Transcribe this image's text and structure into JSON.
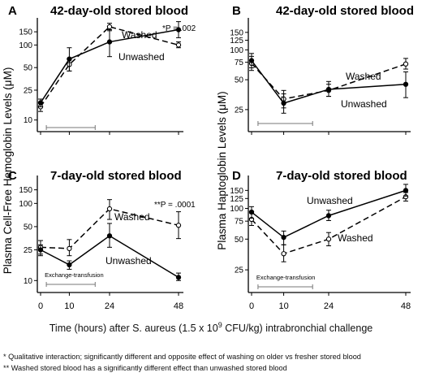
{
  "figure": {
    "ylabel_left": "Plasma Cell-Free Hemoglobin Levels (μM)",
    "ylabel_right": "Plasma Haptoglobin Levels (μM)",
    "xlabel_pre": "Time (hours) after S. aureus (1.5 x 10",
    "xlabel_exp": "9",
    "xlabel_post": " CFU/kg) intrabronchial challenge",
    "footnote1": "*   Qualitative interaction; significantly different and opposite effect of washing on older vs fresher stored blood",
    "footnote2": "**  Washed stored blood has a significantly different effect than unwashed stored blood"
  },
  "chart_data": [
    {
      "id": "A",
      "type": "line",
      "title": "42-day-old stored blood",
      "ylabel": "Plasma Cell-Free Hemoglobin Levels (μM)",
      "yscale": "log",
      "ylim": [
        7,
        230
      ],
      "yticks": [
        10,
        25,
        50,
        100,
        150
      ],
      "xticks": [
        0,
        10,
        24,
        48
      ],
      "x": [
        0,
        10,
        24,
        48
      ],
      "annotation": "*P = .002",
      "bar": {
        "x": [
          2,
          19
        ],
        "label": ""
      },
      "series": [
        {
          "name": "Washed",
          "style": "dashed",
          "marker": "open",
          "values": [
            15,
            55,
            175,
            100
          ],
          "err_lo": [
            13,
            45,
            155,
            92
          ],
          "err_hi": [
            17,
            66,
            195,
            110
          ]
        },
        {
          "name": "Unwashed",
          "style": "solid",
          "marker": "filled",
          "values": [
            17,
            65,
            110,
            160
          ],
          "err_lo": [
            15,
            45,
            70,
            125
          ],
          "err_hi": [
            19,
            92,
            160,
            205
          ]
        }
      ]
    },
    {
      "id": "B",
      "type": "line",
      "title": "42-day-old stored blood",
      "ylabel": "Plasma Haptoglobin Levels (μM)",
      "yscale": "log",
      "ylim": [
        15,
        210
      ],
      "yticks": [
        25,
        50,
        75,
        100,
        125,
        150
      ],
      "xticks": [
        0,
        10,
        24,
        48
      ],
      "x": [
        0,
        10,
        24,
        48
      ],
      "annotation": "",
      "bar": {
        "x": [
          2,
          19
        ],
        "label": ""
      },
      "series": [
        {
          "name": "Washed",
          "style": "dashed",
          "marker": "open",
          "values": [
            73,
            32,
            39,
            72
          ],
          "err_lo": [
            62,
            26,
            34,
            64
          ],
          "err_hi": [
            86,
            39,
            45,
            82
          ]
        },
        {
          "name": "Unwashed",
          "style": "solid",
          "marker": "filled",
          "values": [
            78,
            29,
            40,
            45
          ],
          "err_lo": [
            66,
            23,
            34,
            33
          ],
          "err_hi": [
            92,
            36,
            48,
            60
          ]
        }
      ]
    },
    {
      "id": "C",
      "type": "line",
      "title": "7-day-old stored blood",
      "ylabel": "Plasma Cell-Free Hemoglobin Levels (μM)",
      "yscale": "log",
      "ylim": [
        7,
        230
      ],
      "yticks": [
        10,
        25,
        50,
        100,
        150
      ],
      "xticks": [
        0,
        10,
        24,
        48
      ],
      "x": [
        0,
        10,
        24,
        48
      ],
      "annotation": "**P = .0001",
      "bar": {
        "x": [
          2,
          19
        ],
        "label": "Exchange-transfusion"
      },
      "series": [
        {
          "name": "Washed",
          "style": "dashed",
          "marker": "open",
          "values": [
            27,
            26,
            85,
            52
          ],
          "err_lo": [
            22,
            21,
            62,
            35
          ],
          "err_hi": [
            33,
            34,
            112,
            78
          ]
        },
        {
          "name": "Unwashed",
          "style": "solid",
          "marker": "filled",
          "values": [
            25,
            16,
            38,
            11
          ],
          "err_lo": [
            21,
            14,
            27,
            10
          ],
          "err_hi": [
            29,
            18,
            55,
            12.5
          ]
        }
      ]
    },
    {
      "id": "D",
      "type": "line",
      "title": "7-day-old stored blood",
      "ylabel": "Plasma Haptoglobin Levels (μM)",
      "yscale": "log",
      "ylim": [
        15,
        210
      ],
      "yticks": [
        25,
        50,
        75,
        100,
        125,
        150
      ],
      "xticks": [
        0,
        10,
        24,
        48
      ],
      "x": [
        0,
        10,
        24,
        48
      ],
      "annotation": "",
      "bar": {
        "x": [
          2,
          19
        ],
        "label": "Exchange-transfusion"
      },
      "series": [
        {
          "name": "Washed",
          "style": "dashed",
          "marker": "open",
          "values": [
            78,
            36,
            50,
            130
          ],
          "err_lo": [
            68,
            30,
            43,
            118
          ],
          "err_hi": [
            90,
            44,
            58,
            143
          ]
        },
        {
          "name": "Unwashed",
          "style": "solid",
          "marker": "filled",
          "values": [
            92,
            52,
            85,
            150
          ],
          "err_lo": [
            80,
            44,
            76,
            132
          ],
          "err_hi": [
            104,
            60,
            96,
            172
          ]
        }
      ]
    }
  ]
}
